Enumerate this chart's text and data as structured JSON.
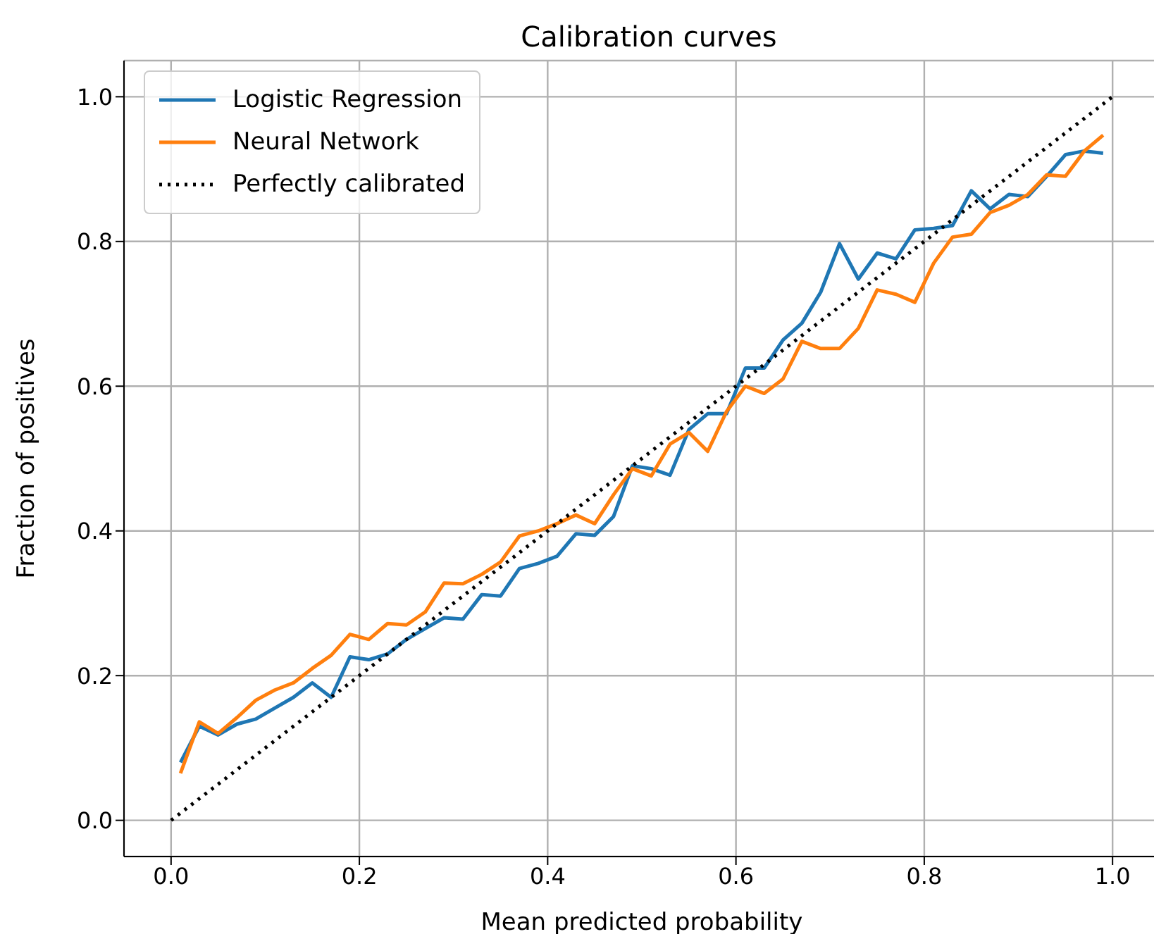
{
  "chart_data": {
    "type": "line",
    "title": "Calibration curves",
    "xlabel": "Mean predicted probability",
    "ylabel": "Fraction of positives",
    "xlim": [
      -0.05,
      1.05
    ],
    "ylim": [
      -0.05,
      1.05
    ],
    "xticks": [
      {
        "value": 0,
        "label": "0.0"
      },
      0.2,
      0.4,
      0.6,
      0.8,
      {
        "value": 1,
        "label": "1.0"
      }
    ],
    "yticks": [
      {
        "value": 0,
        "label": "0.0"
      },
      0.2,
      0.4,
      0.6,
      0.8,
      {
        "value": 1,
        "label": "1.0"
      }
    ],
    "x": [
      0.01,
      0.03,
      0.05,
      0.07,
      0.09,
      0.11,
      0.13,
      0.15,
      0.17,
      0.19,
      0.21,
      0.23,
      0.25,
      0.27,
      0.29,
      0.31,
      0.33,
      0.35,
      0.37,
      0.39,
      0.41,
      0.43,
      0.45,
      0.47,
      0.49,
      0.51,
      0.53,
      0.55,
      0.57,
      0.59,
      0.61,
      0.63,
      0.65,
      0.67,
      0.69,
      0.71,
      0.73,
      0.75,
      0.77,
      0.79,
      0.81,
      0.83,
      0.85,
      0.87,
      0.89,
      0.91,
      0.93,
      0.95,
      0.97,
      0.99
    ],
    "grid": true,
    "legend": "top left",
    "marker": "none",
    "series": [
      {
        "name": "Logistic Regression",
        "color": "#1f77b4",
        "line_style": "solid",
        "values": [
          0.08,
          0.13,
          0.118,
          0.133,
          0.14,
          0.155,
          0.17,
          0.19,
          0.17,
          0.226,
          0.222,
          0.23,
          0.25,
          0.265,
          0.28,
          0.278,
          0.312,
          0.31,
          0.348,
          0.355,
          0.365,
          0.396,
          0.394,
          0.42,
          0.49,
          0.486,
          0.477,
          0.54,
          0.562,
          0.562,
          0.625,
          0.625,
          0.664,
          0.687,
          0.73,
          0.797,
          0.748,
          0.784,
          0.776,
          0.816,
          0.818,
          0.822,
          0.87,
          0.845,
          0.865,
          0.862,
          0.89,
          0.92,
          0.925,
          0.922
        ]
      },
      {
        "name": "Neural Network",
        "color": "#ff7f0e",
        "line_style": "solid",
        "values": [
          0.065,
          0.136,
          0.12,
          0.142,
          0.166,
          0.18,
          0.19,
          0.21,
          0.228,
          0.257,
          0.25,
          0.272,
          0.27,
          0.288,
          0.328,
          0.327,
          0.34,
          0.357,
          0.393,
          0.4,
          0.41,
          0.422,
          0.41,
          0.45,
          0.486,
          0.476,
          0.52,
          0.536,
          0.51,
          0.565,
          0.6,
          0.59,
          0.61,
          0.662,
          0.652,
          0.652,
          0.68,
          0.733,
          0.727,
          0.716,
          0.77,
          0.806,
          0.81,
          0.84,
          0.85,
          0.865,
          0.892,
          0.89,
          0.925,
          0.947
        ]
      },
      {
        "name": "Perfectly calibrated",
        "color": "#000000",
        "line_style": "dotted",
        "x": [
          0,
          1
        ],
        "values": [
          0,
          1
        ]
      }
    ]
  }
}
